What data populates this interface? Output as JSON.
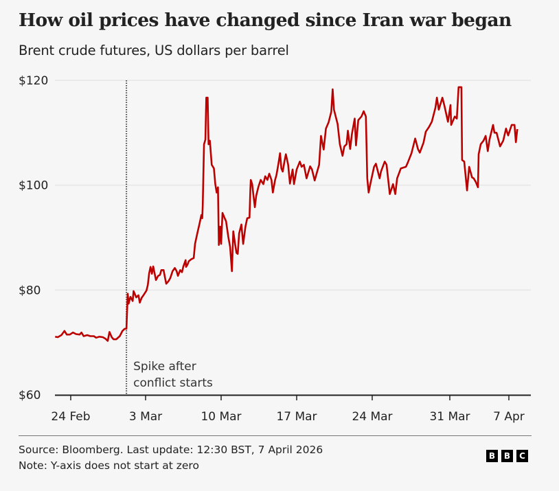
{
  "header": {
    "title": "How oil prices have changed since Iran war began",
    "subtitle": "Brent crude futures, US dollars per barrel"
  },
  "chart_data": {
    "type": "line",
    "title": "How oil prices have changed since Iran war began",
    "ylabel": "Brent crude futures, US dollars per barrel",
    "ylim": [
      60,
      120
    ],
    "yticks": [
      60,
      80,
      100,
      120
    ],
    "ytick_labels": [
      "$60",
      "$80",
      "$100",
      "$120"
    ],
    "xticks": [
      "2026-02-24",
      "2026-03-03",
      "2026-03-10",
      "2026-03-17",
      "2026-03-24",
      "2026-03-31",
      "2026-04-07"
    ],
    "xtick_labels": [
      "24 Feb",
      "3 Mar",
      "10 Mar",
      "17 Mar",
      "24 Mar",
      "31 Mar",
      "7 Apr"
    ],
    "grid": "horizontal",
    "line_color": "#bb0000",
    "annotation": {
      "text_line1": "Spike after",
      "text_line2": "conflict starts",
      "style": "dotted vertical line"
    },
    "points": [
      [
        "2026-02-22T13:00",
        71.1
      ],
      [
        "2026-02-22T19:00",
        71.0
      ],
      [
        "2026-02-23T03:00",
        71.4
      ],
      [
        "2026-02-23T10:00",
        72.2
      ],
      [
        "2026-02-23T15:00",
        71.5
      ],
      [
        "2026-02-23T22:00",
        71.5
      ],
      [
        "2026-02-24T05:00",
        71.9
      ],
      [
        "2026-02-24T12:00",
        71.6
      ],
      [
        "2026-02-24T20:00",
        71.5
      ],
      [
        "2026-02-25T00:00",
        71.9
      ],
      [
        "2026-02-25T05:00",
        71.2
      ],
      [
        "2026-02-25T13:00",
        71.4
      ],
      [
        "2026-02-25T20:00",
        71.2
      ],
      [
        "2026-02-26T04:00",
        71.2
      ],
      [
        "2026-02-26T09:00",
        70.9
      ],
      [
        "2026-02-26T16:00",
        71.1
      ],
      [
        "2026-02-27T00:00",
        71.0
      ],
      [
        "2026-02-27T06:00",
        70.7
      ],
      [
        "2026-02-27T11:00",
        70.3
      ],
      [
        "2026-02-27T15:00",
        72.0
      ],
      [
        "2026-02-27T20:00",
        71.0
      ],
      [
        "2026-02-28T00:00",
        70.6
      ],
      [
        "2026-02-28T06:00",
        70.6
      ],
      [
        "2026-02-28T14:00",
        71.2
      ],
      [
        "2026-02-28T20:00",
        72.2
      ],
      [
        "2026-03-01T01:00",
        72.6
      ],
      [
        "2026-03-01T05:00",
        72.6
      ],
      [
        "2026-03-01T08:00",
        79.3
      ],
      [
        "2026-03-01T10:00",
        77.4
      ],
      [
        "2026-03-01T14:00",
        78.7
      ],
      [
        "2026-03-01T19:00",
        77.9
      ],
      [
        "2026-03-01T21:00",
        79.8
      ],
      [
        "2026-03-02T03:00",
        78.6
      ],
      [
        "2026-03-02T08:00",
        79.0
      ],
      [
        "2026-03-02T11:00",
        77.6
      ],
      [
        "2026-03-02T15:00",
        78.5
      ],
      [
        "2026-03-02T20:00",
        79.1
      ],
      [
        "2026-03-03T02:00",
        79.9
      ],
      [
        "2026-03-03T05:00",
        81.0
      ],
      [
        "2026-03-03T08:00",
        83.2
      ],
      [
        "2026-03-03T11:00",
        84.4
      ],
      [
        "2026-03-03T14:00",
        83.1
      ],
      [
        "2026-03-03T17:00",
        84.5
      ],
      [
        "2026-03-03T20:00",
        83.2
      ],
      [
        "2026-03-03T23:00",
        81.9
      ],
      [
        "2026-03-04T04:00",
        82.7
      ],
      [
        "2026-03-04T08:00",
        82.9
      ],
      [
        "2026-03-04T11:00",
        83.8
      ],
      [
        "2026-03-04T16:00",
        83.8
      ],
      [
        "2026-03-04T19:00",
        82.4
      ],
      [
        "2026-03-04T22:00",
        81.2
      ],
      [
        "2026-03-05T03:00",
        81.7
      ],
      [
        "2026-03-05T07:00",
        82.3
      ],
      [
        "2026-03-05T12:00",
        83.6
      ],
      [
        "2026-03-05T17:00",
        84.2
      ],
      [
        "2026-03-05T21:00",
        83.6
      ],
      [
        "2026-03-06T00:00",
        82.7
      ],
      [
        "2026-03-06T05:00",
        83.8
      ],
      [
        "2026-03-06T09:00",
        83.4
      ],
      [
        "2026-03-06T12:00",
        84.5
      ],
      [
        "2026-03-06T17:00",
        85.7
      ],
      [
        "2026-03-06T18:00",
        84.4
      ],
      [
        "2026-03-06T21:00",
        84.8
      ],
      [
        "2026-03-07T00:00",
        85.5
      ],
      [
        "2026-03-07T06:00",
        85.9
      ],
      [
        "2026-03-07T11:00",
        86.1
      ],
      [
        "2026-03-07T14:00",
        88.8
      ],
      [
        "2026-03-07T19:00",
        90.8
      ],
      [
        "2026-03-08T00:00",
        92.7
      ],
      [
        "2026-03-08T04:00",
        94.3
      ],
      [
        "2026-03-08T06:00",
        93.7
      ],
      [
        "2026-03-08T07:00",
        96.0
      ],
      [
        "2026-03-08T10:00",
        107.8
      ],
      [
        "2026-03-08T13:00",
        108.7
      ],
      [
        "2026-03-08T15:00",
        116.7
      ],
      [
        "2026-03-08T18:00",
        116.7
      ],
      [
        "2026-03-08T20:00",
        107.8
      ],
      [
        "2026-03-08T23:00",
        108.5
      ],
      [
        "2026-03-09T03:00",
        103.9
      ],
      [
        "2026-03-09T08:00",
        103.2
      ],
      [
        "2026-03-09T11:00",
        100.2
      ],
      [
        "2026-03-09T14:00",
        98.6
      ],
      [
        "2026-03-09T17:00",
        99.6
      ],
      [
        "2026-03-09T19:00",
        88.6
      ],
      [
        "2026-03-09T22:00",
        92.1
      ],
      [
        "2026-03-10T00:00",
        88.8
      ],
      [
        "2026-03-10T03:00",
        94.7
      ],
      [
        "2026-03-10T08:00",
        93.7
      ],
      [
        "2026-03-10T11:00",
        93.1
      ],
      [
        "2026-03-10T16:00",
        90.1
      ],
      [
        "2026-03-10T20:00",
        88.2
      ],
      [
        "2026-03-11T00:00",
        83.6
      ],
      [
        "2026-03-11T03:00",
        91.2
      ],
      [
        "2026-03-11T07:00",
        88.8
      ],
      [
        "2026-03-11T10:00",
        87.1
      ],
      [
        "2026-03-11T13:00",
        86.9
      ],
      [
        "2026-03-11T16:00",
        90.8
      ],
      [
        "2026-03-11T21:00",
        92.5
      ],
      [
        "2026-03-12T01:00",
        88.8
      ],
      [
        "2026-03-12T06:00",
        92.1
      ],
      [
        "2026-03-12T10:00",
        93.7
      ],
      [
        "2026-03-12T15:00",
        93.8
      ],
      [
        "2026-03-12T17:00",
        99.3
      ],
      [
        "2026-03-12T18:00",
        101.0
      ],
      [
        "2026-03-12T21:00",
        100.2
      ],
      [
        "2026-03-13T00:00",
        98.0
      ],
      [
        "2026-03-13T03:00",
        95.8
      ],
      [
        "2026-03-13T06:00",
        98.0
      ],
      [
        "2026-03-13T11:00",
        99.7
      ],
      [
        "2026-03-13T16:00",
        101.0
      ],
      [
        "2026-03-13T22:00",
        100.2
      ],
      [
        "2026-03-14T02:00",
        101.7
      ],
      [
        "2026-03-14T07:00",
        101.0
      ],
      [
        "2026-03-14T11:00",
        102.2
      ],
      [
        "2026-03-14T16:00",
        101.0
      ],
      [
        "2026-03-14T19:00",
        98.6
      ],
      [
        "2026-03-15T00:00",
        101.0
      ],
      [
        "2026-03-15T03:00",
        101.9
      ],
      [
        "2026-03-15T07:00",
        103.9
      ],
      [
        "2026-03-15T11:00",
        106.1
      ],
      [
        "2026-03-15T14:00",
        103.2
      ],
      [
        "2026-03-15T17:00",
        102.6
      ],
      [
        "2026-03-15T21:00",
        104.6
      ],
      [
        "2026-03-16T00:00",
        105.9
      ],
      [
        "2026-03-16T05:00",
        103.9
      ],
      [
        "2026-03-16T09:00",
        100.3
      ],
      [
        "2026-03-16T15:00",
        103.0
      ],
      [
        "2026-03-16T18:00",
        100.2
      ],
      [
        "2026-03-17T00:00",
        103.0
      ],
      [
        "2026-03-17T07:00",
        104.5
      ],
      [
        "2026-03-17T11:00",
        103.5
      ],
      [
        "2026-03-17T16:00",
        103.9
      ],
      [
        "2026-03-17T22:00",
        101.3
      ],
      [
        "2026-03-18T06:00",
        103.6
      ],
      [
        "2026-03-18T10:00",
        103.0
      ],
      [
        "2026-03-18T16:00",
        100.9
      ],
      [
        "2026-03-19T02:00",
        103.9
      ],
      [
        "2026-03-19T06:00",
        109.4
      ],
      [
        "2026-03-19T12:00",
        106.8
      ],
      [
        "2026-03-19T17:00",
        110.8
      ],
      [
        "2026-03-19T23:00",
        112.0
      ],
      [
        "2026-03-20T05:00",
        114.0
      ],
      [
        "2026-03-20T08:00",
        118.3
      ],
      [
        "2026-03-20T11:00",
        114.4
      ],
      [
        "2026-03-20T19:00",
        111.7
      ],
      [
        "2026-03-21T00:00",
        107.8
      ],
      [
        "2026-03-21T06:00",
        105.6
      ],
      [
        "2026-03-21T10:00",
        107.4
      ],
      [
        "2026-03-21T15:00",
        107.8
      ],
      [
        "2026-03-21T18:00",
        110.4
      ],
      [
        "2026-03-21T23:00",
        106.9
      ],
      [
        "2026-03-22T03:00",
        109.8
      ],
      [
        "2026-03-22T09:00",
        112.7
      ],
      [
        "2026-03-22T12:00",
        107.6
      ],
      [
        "2026-03-22T17:00",
        112.4
      ],
      [
        "2026-03-23T00:00",
        113.1
      ],
      [
        "2026-03-23T05:00",
        114.1
      ],
      [
        "2026-03-23T10:00",
        113.1
      ],
      [
        "2026-03-23T13:00",
        101.3
      ],
      [
        "2026-03-23T16:00",
        98.6
      ],
      [
        "2026-03-23T20:00",
        100.3
      ],
      [
        "2026-03-24T04:00",
        103.5
      ],
      [
        "2026-03-24T08:00",
        104.1
      ],
      [
        "2026-03-24T16:00",
        101.3
      ],
      [
        "2026-03-24T19:00",
        102.6
      ],
      [
        "2026-03-25T03:00",
        104.5
      ],
      [
        "2026-03-25T07:00",
        103.9
      ],
      [
        "2026-03-25T14:00",
        98.3
      ],
      [
        "2026-03-25T21:00",
        100.2
      ],
      [
        "2026-03-26T02:00",
        98.3
      ],
      [
        "2026-03-26T06:00",
        101.3
      ],
      [
        "2026-03-26T14:00",
        103.2
      ],
      [
        "2026-03-27T01:00",
        103.5
      ],
      [
        "2026-03-27T05:00",
        104.3
      ],
      [
        "2026-03-27T13:00",
        106.1
      ],
      [
        "2026-03-27T21:00",
        108.9
      ],
      [
        "2026-03-28T03:00",
        106.9
      ],
      [
        "2026-03-28T07:00",
        106.2
      ],
      [
        "2026-03-28T15:00",
        108.1
      ],
      [
        "2026-03-28T20:00",
        110.2
      ],
      [
        "2026-03-29T03:00",
        111.1
      ],
      [
        "2026-03-29T09:00",
        112.1
      ],
      [
        "2026-03-29T17:00",
        114.8
      ],
      [
        "2026-03-29T20:00",
        116.7
      ],
      [
        "2026-03-30T00:00",
        114.4
      ],
      [
        "2026-03-30T08:00",
        116.7
      ],
      [
        "2026-03-30T12:00",
        115.3
      ],
      [
        "2026-03-30T20:00",
        112.1
      ],
      [
        "2026-03-31T02:00",
        115.3
      ],
      [
        "2026-03-31T04:00",
        111.5
      ],
      [
        "2026-03-31T14:00",
        113.1
      ],
      [
        "2026-03-31T20:00",
        112.7
      ],
      [
        "2026-04-01T01:00",
        118.7
      ],
      [
        "2026-04-01T09:00",
        118.7
      ],
      [
        "2026-04-01T11:00",
        104.8
      ],
      [
        "2026-04-01T17:00",
        104.5
      ],
      [
        "2026-04-02T01:00",
        99.0
      ],
      [
        "2026-04-02T07:00",
        103.5
      ],
      [
        "2026-04-02T15:00",
        101.5
      ],
      [
        "2026-04-02T20:00",
        101.3
      ],
      [
        "2026-04-03T02:00",
        100.6
      ],
      [
        "2026-04-03T08:00",
        99.6
      ],
      [
        "2026-04-03T10:00",
        105.9
      ],
      [
        "2026-04-03T16:00",
        107.8
      ],
      [
        "2026-04-04T00:00",
        108.5
      ],
      [
        "2026-04-04T06:00",
        109.4
      ],
      [
        "2026-04-04T12:00",
        106.5
      ],
      [
        "2026-04-04T17:00",
        108.7
      ],
      [
        "2026-04-05T03:00",
        111.5
      ],
      [
        "2026-04-05T07:00",
        110.0
      ],
      [
        "2026-04-05T13:00",
        110.0
      ],
      [
        "2026-04-05T23:00",
        107.4
      ],
      [
        "2026-04-06T08:00",
        108.5
      ],
      [
        "2026-04-06T16:00",
        110.8
      ],
      [
        "2026-04-06T22:00",
        109.5
      ],
      [
        "2026-04-07T08:00",
        111.5
      ],
      [
        "2026-04-07T16:00",
        111.5
      ],
      [
        "2026-04-07T20:00",
        108.2
      ],
      [
        "2026-04-08T00:00",
        110.7
      ]
    ]
  },
  "footer": {
    "source": "Source: Bloomberg. Last update: 12:30 BST, 7 April 2026",
    "note": "Note: Y-axis does not start at zero",
    "logo_letters": [
      "B",
      "B",
      "C"
    ]
  }
}
